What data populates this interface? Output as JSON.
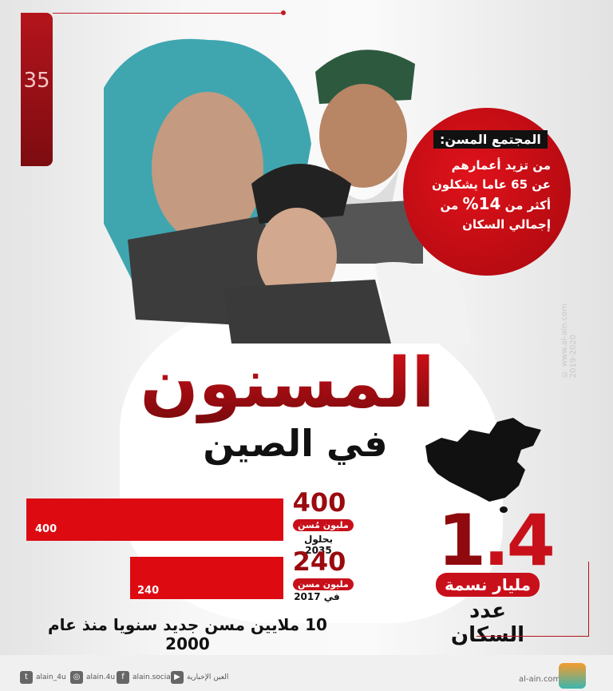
{
  "logo": {
    "text": "35"
  },
  "callout": {
    "title": "المجتمع المسن:",
    "line1": "من تزيد أعمارهم",
    "line2": "عن 65 عاما يشكلون",
    "line3a": "أكثر من",
    "percent": "14%",
    "line3b": "من",
    "line4": "إجمالي السكان"
  },
  "watermark": {
    "site": "www.al-ain.com",
    "years": "2019-2020"
  },
  "title": {
    "main": "المسنون",
    "sub": "في الصين"
  },
  "chart_data": {
    "type": "bar",
    "categories": [
      "بحلول 2035",
      "في 2017"
    ],
    "values": [
      400,
      240
    ],
    "unit": "مليون مسن",
    "bars": [
      {
        "value": "400",
        "unit": "مليون مُسن",
        "period": "بحلول 2035"
      },
      {
        "value": "240",
        "unit": "مليون مسن",
        "period": "في 2017"
      }
    ]
  },
  "population": {
    "whole": "1",
    "decimal": ".4",
    "unit": "مليار نسمة",
    "label": "عدد السكان"
  },
  "note": "10 ملايين مسن جديد سنويا منذ عام 2000",
  "footer": {
    "social": [
      {
        "icon": "youtube-icon",
        "label": "العين الإخبارية"
      },
      {
        "icon": "facebook-icon",
        "label": "alain.social"
      },
      {
        "icon": "instagram-icon",
        "label": "alain.4u"
      },
      {
        "icon": "twitter-icon",
        "label": "alain_4u"
      }
    ],
    "site": "al-ain.com",
    "logo_text": "العين الإخبارية"
  },
  "colors": {
    "accent": "#dd0a12",
    "dark_red": "#8f0a0e"
  }
}
